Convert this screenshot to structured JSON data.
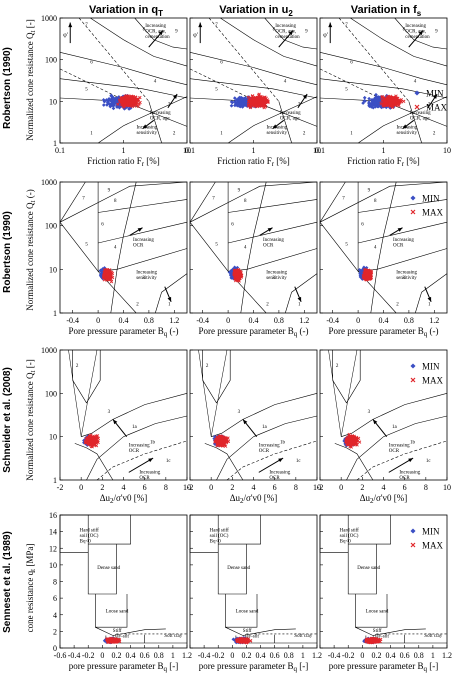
{
  "headers": [
    "Variation in q",
    "Variation in u",
    "Variation in f"
  ],
  "header_subscripts": [
    "T",
    "2",
    "s"
  ],
  "colors": {
    "min": "#3b4fc4",
    "max": "#e0262b",
    "line": "#000000"
  },
  "legend": {
    "min": "MIN",
    "max": "MAX"
  },
  "chart_data": [
    {
      "type": "scatter",
      "row_label": "Robertson (1990)",
      "xlabel": "Friction ratio F",
      "xlabel_sub": "r",
      "xlabel_tail": " [%]",
      "ylabel": "Normalized cone resistance Q",
      "ylabel_sub": "t",
      "ylabel_tail": " [-]",
      "xscale": "log",
      "yscale": "log",
      "xlim": [
        0.1,
        10
      ],
      "ylim": [
        1,
        1000
      ],
      "xticks": [
        {
          "v": 0.1,
          "l": "0.1"
        },
        {
          "v": 1,
          "l": "1"
        },
        {
          "v": 10,
          "l": "10"
        }
      ],
      "yticks": [
        {
          "v": 1,
          "l": "1"
        },
        {
          "v": 10,
          "l": "10"
        },
        {
          "v": 100,
          "l": "100"
        },
        {
          "v": 1000,
          "l": "1000"
        }
      ],
      "zone_numbers": [
        "1",
        "2",
        "3",
        "4",
        "5",
        "6",
        "7",
        "8",
        "9"
      ],
      "annotations": [
        "Increasing OCR, age, cementation",
        "Increasing OCR, age",
        "Increasing sensitivity"
      ],
      "phi_label": "φ'",
      "legend_position": "right",
      "series": [
        {
          "name": "MIN",
          "center": [
            0.9,
            9.5
          ]
        },
        {
          "name": "MAX",
          "center": [
            1.2,
            10
          ]
        }
      ]
    },
    {
      "type": "scatter",
      "row_label": "Robertson (1990)",
      "xlabel": "Pore pressure parameter B",
      "xlabel_sub": "q",
      "xlabel_tail": " (-)",
      "ylabel": "Normalized cone resistance Q",
      "ylabel_sub": "t",
      "ylabel_tail": " (-)",
      "xscale": "linear",
      "yscale": "log",
      "xlim": [
        -0.6,
        1.4
      ],
      "ylim": [
        1,
        1000
      ],
      "xticks": [
        {
          "v": -0.4,
          "l": "-0.4"
        },
        {
          "v": 0,
          "l": "0"
        },
        {
          "v": 0.4,
          "l": "0.4"
        },
        {
          "v": 0.8,
          "l": "0.8"
        },
        {
          "v": 1.2,
          "l": "1.2"
        }
      ],
      "yticks": [
        {
          "v": 1,
          "l": "1"
        },
        {
          "v": 10,
          "l": "10"
        },
        {
          "v": 100,
          "l": "100"
        },
        {
          "v": 1000,
          "l": "1000"
        }
      ],
      "zone_numbers": [
        "1",
        "2",
        "3",
        "4",
        "5",
        "6",
        "7",
        "8",
        "9"
      ],
      "annotations": [
        "Increasing OCR",
        "Increasing sensitivity"
      ],
      "legend_position": "top-right",
      "series": [
        {
          "name": "MIN",
          "center": [
            0.1,
            8
          ]
        },
        {
          "name": "MAX",
          "center": [
            0.15,
            7.5
          ]
        }
      ]
    },
    {
      "type": "scatter",
      "row_label": "Schneider et al. (2008)",
      "xlabel": "Δu",
      "xlabel_sub": "2",
      "xlabel_tail": "/σ'v0 [%]",
      "ylabel": "Normalized cone resistance Q",
      "ylabel_sub": "t",
      "ylabel_tail": " [-]",
      "xscale": "linear",
      "yscale": "log",
      "xlim": [
        -2,
        10
      ],
      "ylim": [
        1,
        1000
      ],
      "xticks": [
        {
          "v": -2,
          "l": "-2"
        },
        {
          "v": 0,
          "l": "0"
        },
        {
          "v": 2,
          "l": "2"
        },
        {
          "v": 4,
          "l": "4"
        },
        {
          "v": 6,
          "l": "6"
        },
        {
          "v": 8,
          "l": "8"
        },
        {
          "v": 10,
          "l": "10"
        }
      ],
      "yticks": [
        {
          "v": 1,
          "l": "1"
        },
        {
          "v": 10,
          "l": "10"
        },
        {
          "v": 100,
          "l": "100"
        },
        {
          "v": 1000,
          "l": "1000"
        }
      ],
      "zone_numbers": [
        "1a",
        "1b",
        "1c",
        "2",
        "3"
      ],
      "annotations": [
        "Increasing OCR",
        "Increasing OCR"
      ],
      "legend_position": "top-right",
      "series": [
        {
          "name": "MIN",
          "center": [
            0.8,
            8
          ]
        },
        {
          "name": "MAX",
          "center": [
            1.0,
            8
          ]
        }
      ]
    },
    {
      "type": "scatter",
      "row_label": "Senneset et al. (1989)",
      "xlabel": "pore pressure parameter B",
      "xlabel_sub": "q",
      "xlabel_tail": " [-]",
      "ylabel": "cone resistance q",
      "ylabel_sub": "t",
      "ylabel_tail": " [MPa]",
      "xscale": "linear",
      "yscale": "linear",
      "xlim": [
        -0.6,
        1.2
      ],
      "ylim": [
        0,
        16
      ],
      "xticks": [
        {
          "v": -0.6,
          "l": "-0.6"
        },
        {
          "v": -0.4,
          "l": "-0.4"
        },
        {
          "v": -0.2,
          "l": "-0.2"
        },
        {
          "v": 0,
          "l": "0"
        },
        {
          "v": 0.2,
          "l": "0.2"
        },
        {
          "v": 0.4,
          "l": "0.4"
        },
        {
          "v": 0.6,
          "l": "0.6"
        },
        {
          "v": 0.8,
          "l": "0.8"
        },
        {
          "v": 1,
          "l": "1"
        },
        {
          "v": 1.2,
          "l": "1.2"
        }
      ],
      "yticks": [
        {
          "v": 0,
          "l": "0"
        },
        {
          "v": 2,
          "l": "2"
        },
        {
          "v": 4,
          "l": "4"
        },
        {
          "v": 6,
          "l": "6"
        },
        {
          "v": 8,
          "l": "8"
        },
        {
          "v": 10,
          "l": "10"
        },
        {
          "v": 12,
          "l": "12"
        },
        {
          "v": 14,
          "l": "14"
        },
        {
          "v": 16,
          "l": "16"
        }
      ],
      "zone_labels": [
        {
          "text": "Hard stiff soil (OC) Bq<0",
          "xy": [
            -0.35,
            14
          ]
        },
        {
          "text": "Dense sand",
          "xy": [
            -0.1,
            9.5
          ]
        },
        {
          "text": "Loose sand",
          "xy": [
            0.02,
            4.3
          ]
        },
        {
          "text": "Stiff clay-silt",
          "xy": [
            0.12,
            1.9
          ]
        },
        {
          "text": "Soft clay",
          "xy": [
            0.85,
            1.3
          ]
        }
      ],
      "legend_position": "top-right",
      "series": [
        {
          "name": "MIN",
          "center": [
            0.12,
            0.9
          ]
        },
        {
          "name": "MAX",
          "center": [
            0.15,
            0.9
          ]
        }
      ]
    }
  ]
}
